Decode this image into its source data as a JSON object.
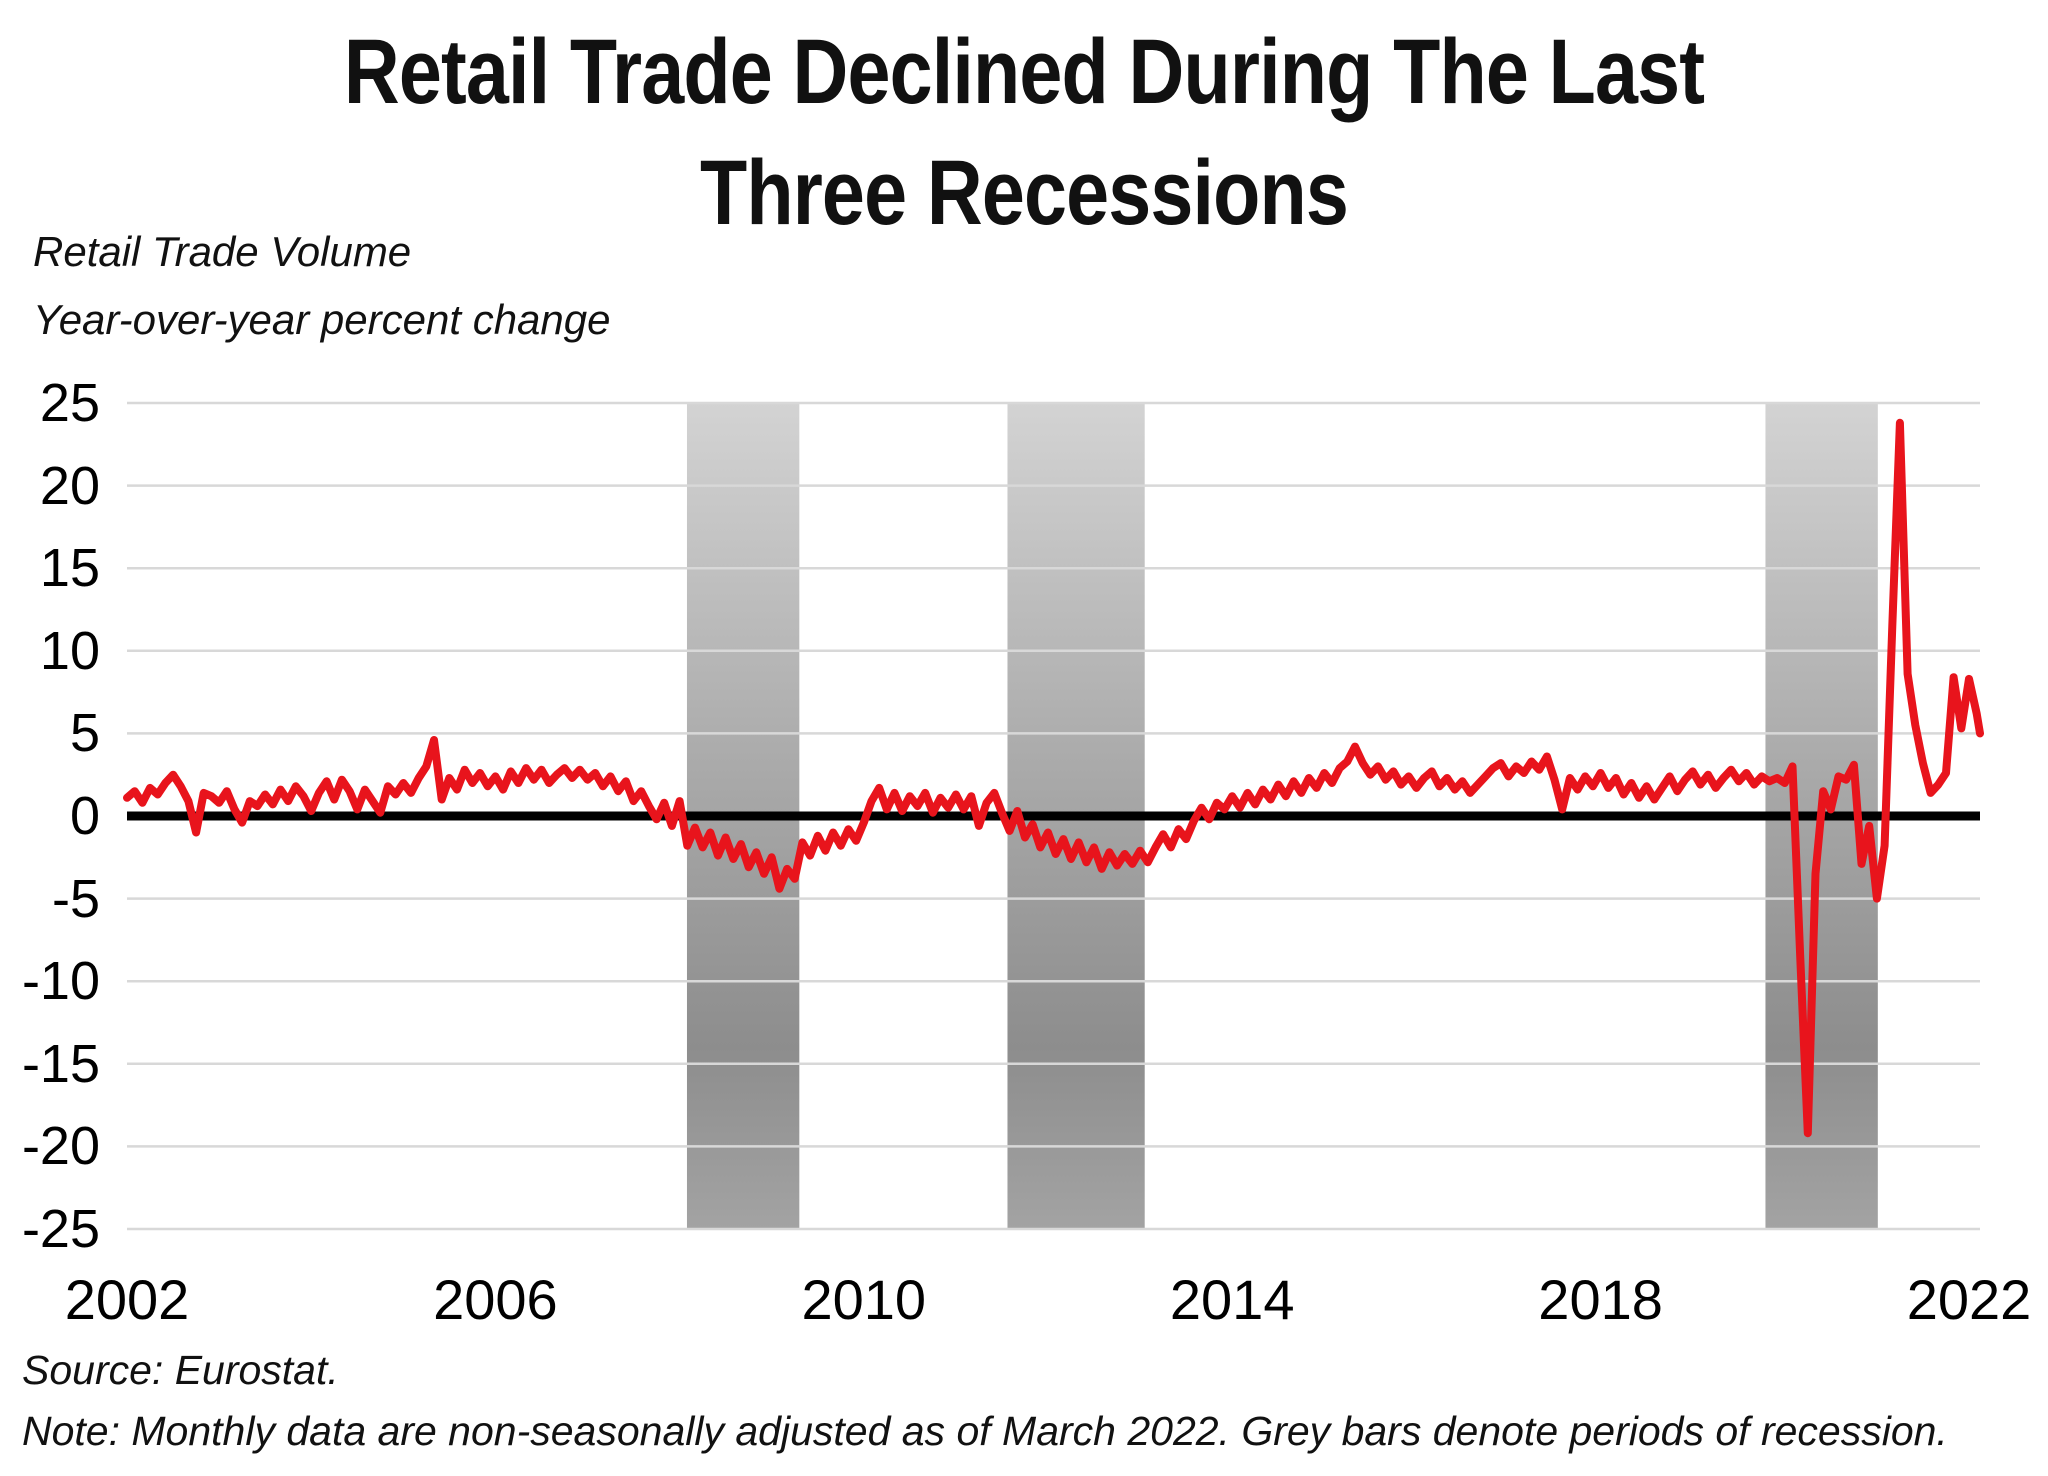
{
  "title": {
    "line1": "Retail Trade Declined During The Last",
    "line2": "Three Recessions"
  },
  "subtitle": {
    "line1": "Retail Trade Volume",
    "line2": "Year-over-year percent change"
  },
  "footnotes": {
    "source": "Source: Eurostat.",
    "note": "Note: Monthly data are non-seasonally adjusted as of March 2022. Grey bars denote periods of recession."
  },
  "colors": {
    "line": "#e8141c",
    "zero_line": "#000000",
    "grid": "#d8d8d8",
    "recession_top": "#d3d3d3",
    "recession_mid": "#a9a9a9",
    "recession_dark": "#8d8d8d",
    "recession_bottom": "#a3a3a3"
  },
  "chart_data": {
    "type": "line",
    "title": "Retail Trade Declined During The Last Three Recessions",
    "series_name": "Retail trade volume, year-over-year percent change",
    "frequency": "monthly",
    "x_start": 2002.0,
    "x_step_years": 0.0833333,
    "x_end_label": "March 2022",
    "ylim": [
      -25,
      25
    ],
    "y_ticks": [
      25,
      20,
      15,
      10,
      5,
      0,
      -5,
      -10,
      -15,
      -20,
      -25
    ],
    "x_ticks": [
      2002,
      2006,
      2010,
      2014,
      2018,
      2022
    ],
    "grid": "horizontal-only",
    "legend": "none",
    "recession_bars": [
      {
        "start": 2008.08,
        "end": 2009.3
      },
      {
        "start": 2011.56,
        "end": 2013.05
      },
      {
        "start": 2019.79,
        "end": 2021.01
      }
    ],
    "values": [
      1.1,
      1.5,
      0.8,
      1.7,
      1.3,
      2.0,
      2.5,
      1.8,
      0.9,
      -1.0,
      1.4,
      1.2,
      0.8,
      1.5,
      0.4,
      -0.4,
      0.9,
      0.6,
      1.3,
      0.7,
      1.6,
      0.9,
      1.8,
      1.2,
      0.3,
      1.4,
      2.1,
      1.0,
      2.2,
      1.5,
      0.4,
      1.6,
      0.9,
      0.2,
      1.8,
      1.3,
      2.0,
      1.4,
      2.3,
      3.0,
      4.6,
      1.0,
      2.3,
      1.6,
      2.8,
      2.0,
      2.6,
      1.8,
      2.4,
      1.6,
      2.7,
      2.0,
      2.9,
      2.2,
      2.8,
      2.0,
      2.5,
      2.9,
      2.3,
      2.8,
      2.2,
      2.6,
      1.8,
      2.4,
      1.5,
      2.1,
      0.9,
      1.5,
      0.6,
      -0.2,
      0.8,
      -0.6,
      0.9,
      -1.8,
      -0.7,
      -1.9,
      -1.0,
      -2.4,
      -1.3,
      -2.6,
      -1.7,
      -3.1,
      -2.2,
      -3.5,
      -2.5,
      -4.4,
      -3.2,
      -3.8,
      -1.6,
      -2.4,
      -1.2,
      -2.1,
      -1.0,
      -1.8,
      -0.8,
      -1.5,
      -0.4,
      0.9,
      1.7,
      0.4,
      1.4,
      0.3,
      1.2,
      0.6,
      1.4,
      0.2,
      1.1,
      0.5,
      1.3,
      0.4,
      1.2,
      -0.6,
      0.8,
      1.4,
      0.2,
      -0.9,
      0.3,
      -1.3,
      -0.5,
      -1.9,
      -1.0,
      -2.3,
      -1.4,
      -2.6,
      -1.6,
      -2.8,
      -1.9,
      -3.2,
      -2.2,
      -3.0,
      -2.3,
      -2.9,
      -2.1,
      -2.8,
      -1.9,
      -1.1,
      -1.9,
      -0.8,
      -1.4,
      -0.3,
      0.5,
      -0.2,
      0.8,
      0.4,
      1.2,
      0.5,
      1.4,
      0.7,
      1.6,
      1.0,
      1.9,
      1.2,
      2.1,
      1.4,
      2.3,
      1.7,
      2.6,
      2.0,
      2.9,
      3.3,
      4.2,
      3.2,
      2.5,
      3.0,
      2.2,
      2.7,
      1.9,
      2.4,
      1.7,
      2.3,
      2.7,
      1.8,
      2.3,
      1.6,
      2.1,
      1.4,
      1.9,
      2.4,
      2.9,
      3.2,
      2.4,
      3.0,
      2.6,
      3.3,
      2.8,
      3.6,
      2.2,
      0.4,
      2.3,
      1.6,
      2.4,
      1.8,
      2.6,
      1.7,
      2.3,
      1.3,
      2.0,
      1.1,
      1.8,
      1.0,
      1.7,
      2.4,
      1.5,
      2.2,
      2.7,
      1.9,
      2.5,
      1.7,
      2.3,
      2.8,
      2.1,
      2.6,
      1.9,
      2.4,
      2.1,
      2.3,
      2.0,
      3.0,
      -8.5,
      -19.2,
      -3.5,
      1.5,
      0.4,
      2.4,
      2.2,
      3.1,
      -2.9,
      -0.6,
      -5.0,
      -1.8,
      11.5,
      23.8,
      8.6,
      5.5,
      3.2,
      1.4,
      1.9,
      2.6,
      8.4,
      5.3,
      8.3,
      6.2,
      5.0
    ]
  }
}
